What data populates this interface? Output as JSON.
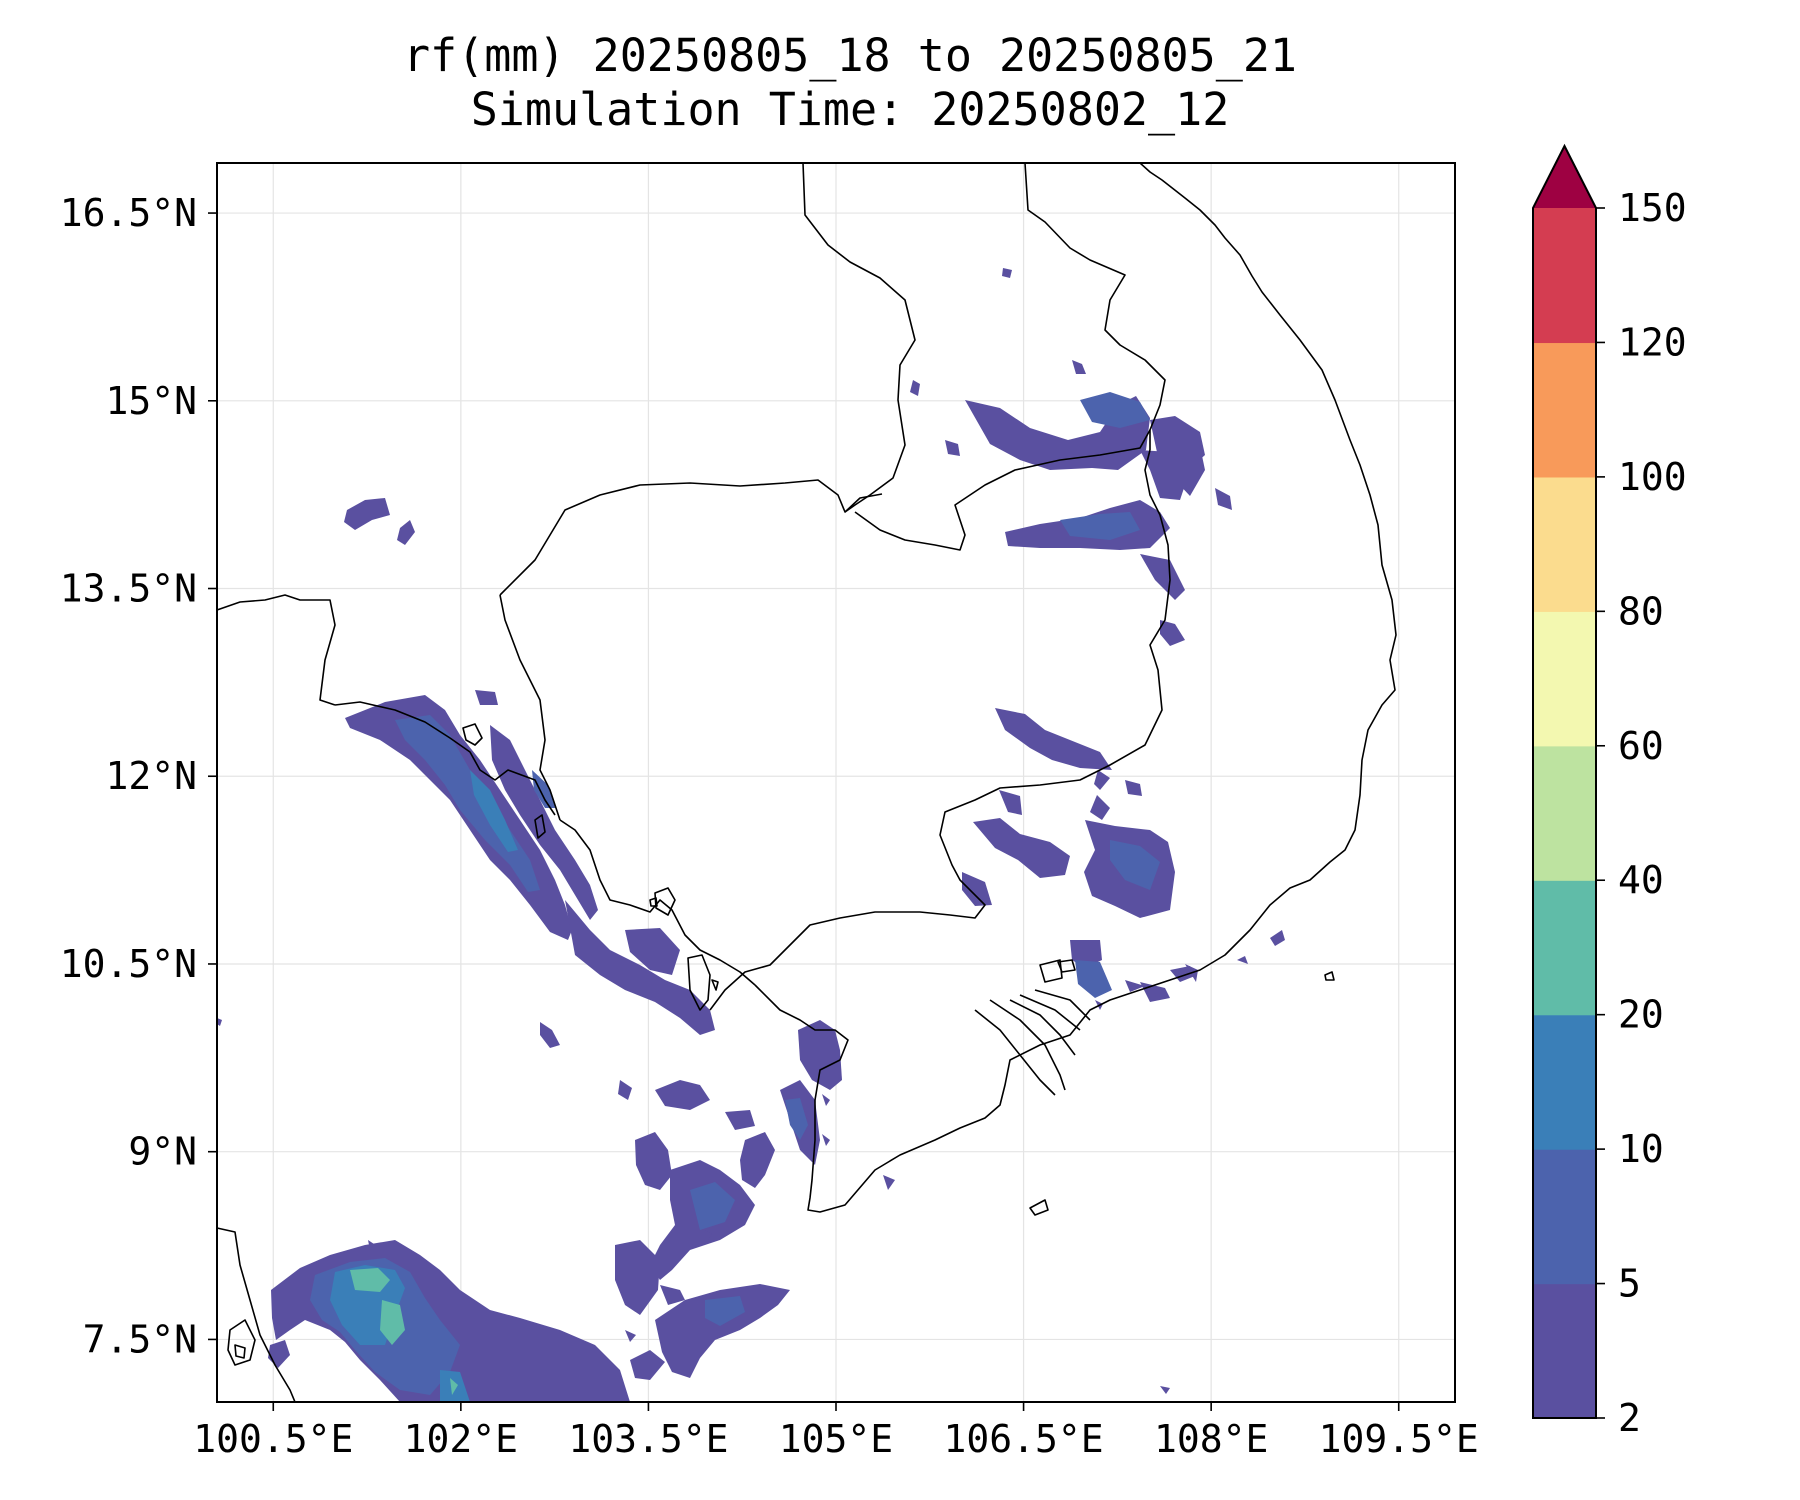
{
  "title": {
    "line1": "rf(mm) 20250805_18 to 20250805_21",
    "line2": "Simulation Time: 20250802_12"
  },
  "map": {
    "lon_range": [
      100.05,
      109.95
    ],
    "lat_range": [
      7.0,
      16.9
    ],
    "gridlines": true,
    "lon_ticks": [
      100.5,
      102,
      103.5,
      105,
      106.5,
      108,
      109.5
    ],
    "lon_tick_labels": [
      "100.5°E",
      "102°E",
      "103.5°E",
      "105°E",
      "106.5°E",
      "108°E",
      "109.5°E"
    ],
    "lat_ticks": [
      16.5,
      15,
      13.5,
      12,
      10.5,
      9,
      7.5
    ],
    "lat_tick_labels": [
      "16.5°N",
      "15°N",
      "13.5°N",
      "12°N",
      "10.5°N",
      "9°N",
      "7.5°N"
    ]
  },
  "colorbar": {
    "extend": "max",
    "levels": [
      2,
      5,
      10,
      20,
      40,
      60,
      80,
      100,
      120,
      150
    ],
    "level_labels": [
      "2",
      "5",
      "10",
      "20",
      "40",
      "60",
      "80",
      "100",
      "120",
      "150"
    ],
    "colors": [
      "#5a50a0",
      "#4c63ad",
      "#3a7fb8",
      "#60bca8",
      "#bde3a0",
      "#f3f8b0",
      "#fbdc8e",
      "#f89a5a",
      "#d43d51"
    ],
    "extend_color": "#9e0142"
  },
  "rain_colors": {
    "light": "#5a50a0",
    "moderate": "#4c63ad",
    "heavy": "#3a7fb8",
    "very_heavy": "#60bca8"
  }
}
